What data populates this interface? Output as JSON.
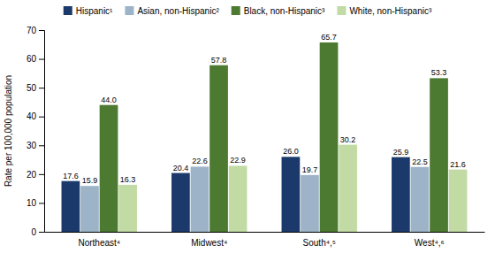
{
  "chart_data": {
    "type": "bar",
    "categories": [
      "Northeast⁴",
      "Midwest⁴",
      "South⁴,⁵",
      "West⁴,⁶"
    ],
    "series": [
      {
        "name": "Hispanic¹",
        "color": "#1b3a6b",
        "values": [
          17.6,
          20.4,
          26.0,
          25.9
        ],
        "value_labels": [
          "17.6",
          "20.4",
          "26.0",
          "25.9"
        ]
      },
      {
        "name": "Asian, non-Hispanic²",
        "color": "#9db4c8",
        "values": [
          15.9,
          22.6,
          19.7,
          22.5
        ],
        "value_labels": [
          "15.9",
          "22.6",
          "19.7",
          "22.5"
        ]
      },
      {
        "name": "Black, non-Hispanic³",
        "color": "#4c7a30",
        "values": [
          44.0,
          57.8,
          65.7,
          53.3
        ],
        "value_labels": [
          "44.0",
          "57.8",
          "65.7",
          "53.3"
        ]
      },
      {
        "name": "White, non-Hispanic³",
        "color": "#c2dba4",
        "values": [
          16.3,
          22.9,
          30.2,
          21.6
        ],
        "value_labels": [
          "16.3",
          "22.9",
          "30.2",
          "21.6"
        ]
      }
    ],
    "ylabel": "Rate per 100,000 population",
    "ylim": [
      0,
      70
    ],
    "yticks": [
      0,
      10,
      20,
      30,
      40,
      50,
      60,
      70
    ],
    "grid": false,
    "legend": "top",
    "data_labels": true
  }
}
